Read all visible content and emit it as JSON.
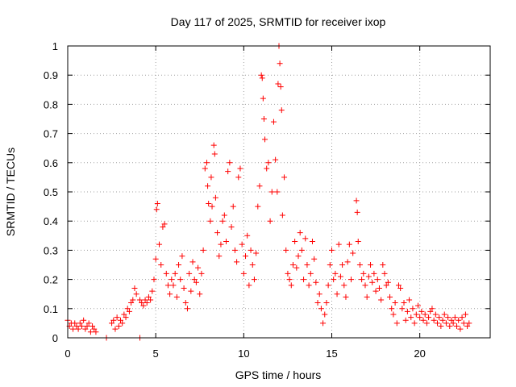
{
  "chart_data": {
    "type": "scatter",
    "title": "Day 117 of 2025, SRMTID for receiver ixop",
    "xlabel": "GPS time / hours",
    "ylabel": "SRMTID / TECUs",
    "xlim": [
      0,
      24
    ],
    "ylim": [
      0,
      1
    ],
    "xticks": [
      0,
      5,
      10,
      15,
      20
    ],
    "yticks": [
      0,
      0.1,
      0.2,
      0.3,
      0.4,
      0.5,
      0.6,
      0.7,
      0.8,
      0.9,
      1
    ],
    "xtick_labels": [
      "0",
      "5",
      "10",
      "15",
      "20"
    ],
    "ytick_labels": [
      "0",
      "0.1",
      "0.2",
      "0.3",
      "0.4",
      "0.5",
      "0.6",
      "0.7",
      "0.8",
      "0.9",
      "1"
    ],
    "grid": true,
    "marker": "+",
    "color": "#ff0000",
    "series": [
      {
        "name": "SRMTID",
        "points": [
          [
            0.0,
            0.06
          ],
          [
            0.1,
            0.04
          ],
          [
            0.2,
            0.05
          ],
          [
            0.3,
            0.03
          ],
          [
            0.4,
            0.05
          ],
          [
            0.5,
            0.04
          ],
          [
            0.6,
            0.03
          ],
          [
            0.7,
            0.05
          ],
          [
            0.8,
            0.04
          ],
          [
            0.9,
            0.06
          ],
          [
            1.0,
            0.03
          ],
          [
            1.1,
            0.04
          ],
          [
            1.2,
            0.05
          ],
          [
            1.3,
            0.02
          ],
          [
            1.4,
            0.04
          ],
          [
            1.5,
            0.03
          ],
          [
            1.6,
            0.02
          ],
          [
            2.2,
            0.0
          ],
          [
            4.1,
            0.0
          ],
          [
            2.5,
            0.05
          ],
          [
            2.6,
            0.06
          ],
          [
            2.7,
            0.03
          ],
          [
            2.8,
            0.07
          ],
          [
            2.9,
            0.04
          ],
          [
            3.0,
            0.06
          ],
          [
            3.1,
            0.05
          ],
          [
            3.2,
            0.08
          ],
          [
            3.3,
            0.07
          ],
          [
            3.4,
            0.1
          ],
          [
            3.5,
            0.09
          ],
          [
            3.6,
            0.12
          ],
          [
            3.7,
            0.13
          ],
          [
            3.8,
            0.17
          ],
          [
            3.9,
            0.15
          ],
          [
            4.1,
            0.13
          ],
          [
            4.2,
            0.12
          ],
          [
            4.3,
            0.11
          ],
          [
            4.4,
            0.13
          ],
          [
            4.5,
            0.12
          ],
          [
            4.6,
            0.14
          ],
          [
            4.7,
            0.13
          ],
          [
            4.8,
            0.16
          ],
          [
            4.9,
            0.2
          ],
          [
            5.0,
            0.27
          ],
          [
            5.05,
            0.44
          ],
          [
            5.1,
            0.46
          ],
          [
            5.2,
            0.32
          ],
          [
            5.3,
            0.25
          ],
          [
            5.4,
            0.38
          ],
          [
            5.5,
            0.39
          ],
          [
            5.6,
            0.22
          ],
          [
            5.7,
            0.18
          ],
          [
            5.8,
            0.15
          ],
          [
            5.9,
            0.2
          ],
          [
            6.0,
            0.18
          ],
          [
            6.1,
            0.22
          ],
          [
            6.2,
            0.14
          ],
          [
            6.3,
            0.25
          ],
          [
            6.4,
            0.2
          ],
          [
            6.5,
            0.28
          ],
          [
            6.6,
            0.17
          ],
          [
            6.7,
            0.12
          ],
          [
            6.8,
            0.1
          ],
          [
            6.9,
            0.22
          ],
          [
            7.0,
            0.16
          ],
          [
            7.1,
            0.26
          ],
          [
            7.2,
            0.2
          ],
          [
            7.3,
            0.19
          ],
          [
            7.4,
            0.24
          ],
          [
            7.5,
            0.15
          ],
          [
            7.6,
            0.22
          ],
          [
            7.7,
            0.3
          ],
          [
            7.8,
            0.58
          ],
          [
            7.9,
            0.6
          ],
          [
            7.95,
            0.52
          ],
          [
            8.0,
            0.46
          ],
          [
            8.1,
            0.4
          ],
          [
            8.15,
            0.55
          ],
          [
            8.2,
            0.45
          ],
          [
            8.3,
            0.66
          ],
          [
            8.35,
            0.63
          ],
          [
            8.4,
            0.48
          ],
          [
            8.5,
            0.36
          ],
          [
            8.6,
            0.28
          ],
          [
            8.7,
            0.32
          ],
          [
            8.8,
            0.4
          ],
          [
            8.9,
            0.42
          ],
          [
            9.0,
            0.33
          ],
          [
            9.1,
            0.57
          ],
          [
            9.2,
            0.6
          ],
          [
            9.3,
            0.38
          ],
          [
            9.4,
            0.45
          ],
          [
            9.5,
            0.3
          ],
          [
            9.6,
            0.26
          ],
          [
            9.7,
            0.55
          ],
          [
            9.8,
            0.58
          ],
          [
            9.9,
            0.32
          ],
          [
            10.0,
            0.22
          ],
          [
            10.1,
            0.28
          ],
          [
            10.2,
            0.35
          ],
          [
            10.3,
            0.18
          ],
          [
            10.4,
            0.3
          ],
          [
            10.5,
            0.25
          ],
          [
            10.6,
            0.2
          ],
          [
            10.7,
            0.29
          ],
          [
            10.8,
            0.45
          ],
          [
            10.9,
            0.52
          ],
          [
            11.0,
            0.9
          ],
          [
            11.05,
            0.89
          ],
          [
            11.1,
            0.82
          ],
          [
            11.15,
            0.75
          ],
          [
            11.2,
            0.68
          ],
          [
            11.3,
            0.58
          ],
          [
            11.4,
            0.6
          ],
          [
            11.5,
            0.4
          ],
          [
            11.6,
            0.5
          ],
          [
            11.7,
            0.74
          ],
          [
            11.8,
            0.61
          ],
          [
            11.9,
            0.5
          ],
          [
            11.95,
            0.87
          ],
          [
            12.0,
            1.0
          ],
          [
            12.05,
            0.94
          ],
          [
            12.1,
            0.86
          ],
          [
            12.15,
            0.78
          ],
          [
            12.2,
            0.42
          ],
          [
            12.3,
            0.55
          ],
          [
            12.4,
            0.3
          ],
          [
            12.5,
            0.22
          ],
          [
            12.6,
            0.2
          ],
          [
            12.7,
            0.18
          ],
          [
            12.8,
            0.25
          ],
          [
            12.9,
            0.33
          ],
          [
            13.0,
            0.24
          ],
          [
            13.1,
            0.28
          ],
          [
            13.2,
            0.36
          ],
          [
            13.3,
            0.3
          ],
          [
            13.4,
            0.2
          ],
          [
            13.5,
            0.34
          ],
          [
            13.6,
            0.25
          ],
          [
            13.7,
            0.18
          ],
          [
            13.8,
            0.22
          ],
          [
            13.9,
            0.33
          ],
          [
            14.0,
            0.27
          ],
          [
            14.1,
            0.19
          ],
          [
            14.2,
            0.12
          ],
          [
            14.3,
            0.15
          ],
          [
            14.4,
            0.1
          ],
          [
            14.5,
            0.05
          ],
          [
            14.6,
            0.08
          ],
          [
            14.7,
            0.12
          ],
          [
            14.8,
            0.18
          ],
          [
            14.9,
            0.25
          ],
          [
            15.0,
            0.3
          ],
          [
            15.1,
            0.2
          ],
          [
            15.2,
            0.22
          ],
          [
            15.3,
            0.15
          ],
          [
            15.4,
            0.32
          ],
          [
            15.5,
            0.21
          ],
          [
            15.6,
            0.25
          ],
          [
            15.7,
            0.18
          ],
          [
            15.8,
            0.14
          ],
          [
            15.9,
            0.26
          ],
          [
            16.0,
            0.32
          ],
          [
            16.1,
            0.2
          ],
          [
            16.2,
            0.29
          ],
          [
            16.4,
            0.47
          ],
          [
            16.45,
            0.43
          ],
          [
            16.5,
            0.33
          ],
          [
            16.6,
            0.25
          ],
          [
            16.7,
            0.2
          ],
          [
            16.8,
            0.22
          ],
          [
            16.9,
            0.18
          ],
          [
            17.0,
            0.14
          ],
          [
            17.1,
            0.21
          ],
          [
            17.2,
            0.25
          ],
          [
            17.3,
            0.19
          ],
          [
            17.4,
            0.22
          ],
          [
            17.5,
            0.16
          ],
          [
            17.6,
            0.2
          ],
          [
            17.7,
            0.17
          ],
          [
            17.8,
            0.13
          ],
          [
            17.9,
            0.25
          ],
          [
            18.0,
            0.22
          ],
          [
            18.1,
            0.18
          ],
          [
            18.2,
            0.19
          ],
          [
            18.3,
            0.14
          ],
          [
            18.4,
            0.1
          ],
          [
            18.5,
            0.08
          ],
          [
            18.6,
            0.12
          ],
          [
            18.7,
            0.05
          ],
          [
            18.8,
            0.18
          ],
          [
            18.9,
            0.17
          ],
          [
            19.0,
            0.1
          ],
          [
            19.1,
            0.12
          ],
          [
            19.2,
            0.06
          ],
          [
            19.3,
            0.09
          ],
          [
            19.4,
            0.13
          ],
          [
            19.5,
            0.07
          ],
          [
            19.6,
            0.1
          ],
          [
            19.7,
            0.05
          ],
          [
            19.8,
            0.08
          ],
          [
            19.9,
            0.11
          ],
          [
            20.0,
            0.07
          ],
          [
            20.1,
            0.09
          ],
          [
            20.2,
            0.06
          ],
          [
            20.3,
            0.08
          ],
          [
            20.4,
            0.05
          ],
          [
            20.5,
            0.07
          ],
          [
            20.6,
            0.09
          ],
          [
            20.7,
            0.1
          ],
          [
            20.8,
            0.06
          ],
          [
            20.9,
            0.08
          ],
          [
            21.0,
            0.05
          ],
          [
            21.1,
            0.07
          ],
          [
            21.2,
            0.04
          ],
          [
            21.3,
            0.06
          ],
          [
            21.4,
            0.08
          ],
          [
            21.5,
            0.05
          ],
          [
            21.6,
            0.07
          ],
          [
            21.7,
            0.04
          ],
          [
            21.8,
            0.06
          ],
          [
            21.9,
            0.05
          ],
          [
            22.0,
            0.07
          ],
          [
            22.1,
            0.04
          ],
          [
            22.2,
            0.06
          ],
          [
            22.3,
            0.03
          ],
          [
            22.4,
            0.07
          ],
          [
            22.5,
            0.05
          ],
          [
            22.6,
            0.08
          ],
          [
            22.7,
            0.04
          ],
          [
            22.8,
            0.05
          ]
        ]
      }
    ]
  }
}
